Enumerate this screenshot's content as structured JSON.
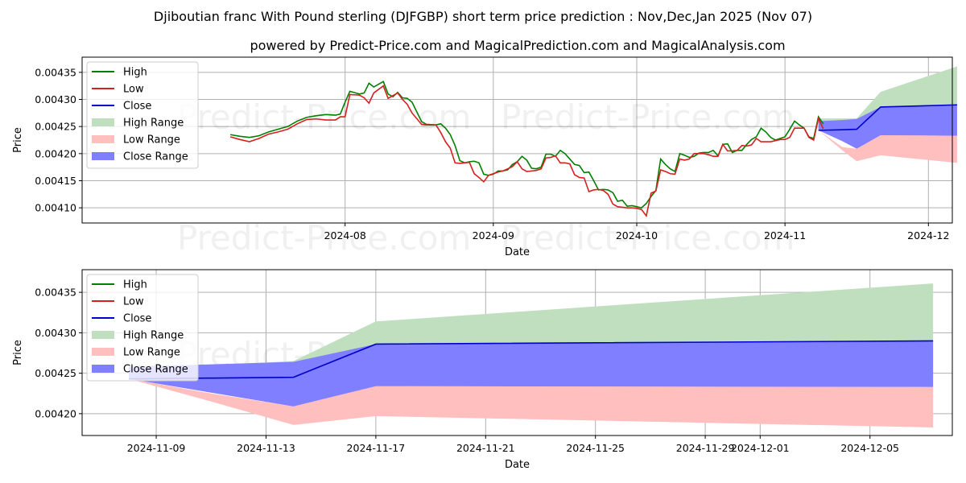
{
  "title": "Djiboutian franc With Pound sterling (DJFGBP) short term price prediction : Nov,Dec,Jan 2025 (Nov 07)",
  "subtitle": "powered by Predict-Price.com and MagicalPrediction.com and MagicalAnalysis.com",
  "watermark": "Predict-Price.com",
  "colors": {
    "high": "#008000",
    "low": "#d62020",
    "close": "#0000cc",
    "high_range": "#bfdfbf",
    "low_range": "#ffbfbf",
    "close_range": "#7f7fff"
  },
  "legend": [
    "High",
    "Low",
    "Close",
    "High Range",
    "Low Range",
    "Close Range"
  ],
  "chart_data": [
    {
      "type": "line",
      "xlabel": "Date",
      "ylabel": "Price",
      "xlim_days": [
        -24,
        158
      ],
      "ylim": [
        0.004072,
        0.004378
      ],
      "x_ticks": [
        {
          "label": "2024-08",
          "day": 31
        },
        {
          "label": "2024-09",
          "day": 62
        },
        {
          "label": "2024-10",
          "day": 92
        },
        {
          "label": "2024-11",
          "day": 123
        },
        {
          "label": "2024-12",
          "day": 153
        }
      ],
      "y_ticks": [
        {
          "label": "0.00410",
          "value": 0.0041
        },
        {
          "label": "0.00415",
          "value": 0.00415
        },
        {
          "label": "0.00420",
          "value": 0.0042
        },
        {
          "label": "0.00425",
          "value": 0.00425
        },
        {
          "label": "0.00430",
          "value": 0.0043
        },
        {
          "label": "0.00435",
          "value": 0.00435
        }
      ],
      "day_zero": "2024-07-01",
      "history": {
        "high": [
          [
            7,
            0.004235
          ],
          [
            9,
            0.004232
          ],
          [
            11,
            0.00423
          ],
          [
            13,
            0.004233
          ],
          [
            15,
            0.00424
          ],
          [
            17,
            0.004245
          ],
          [
            19,
            0.00425
          ],
          [
            21,
            0.00426
          ],
          [
            23,
            0.004267
          ],
          [
            25,
            0.00427
          ],
          [
            27,
            0.004272
          ],
          [
            29,
            0.004271
          ],
          [
            30,
            0.004273
          ],
          [
            31,
            0.004295
          ],
          [
            32,
            0.004315
          ],
          [
            34,
            0.00431
          ],
          [
            35,
            0.004312
          ],
          [
            36,
            0.00433
          ],
          [
            37,
            0.004323
          ],
          [
            39,
            0.004333
          ],
          [
            40,
            0.00431
          ],
          [
            41,
            0.004305
          ],
          [
            42,
            0.004313
          ],
          [
            43,
            0.004303
          ],
          [
            44,
            0.004302
          ],
          [
            45,
            0.004295
          ],
          [
            47,
            0.004259
          ],
          [
            48,
            0.004254
          ],
          [
            50,
            0.004253
          ],
          [
            51,
            0.004255
          ],
          [
            52,
            0.004247
          ],
          [
            53,
            0.004235
          ],
          [
            54,
            0.004215
          ],
          [
            55,
            0.004187
          ],
          [
            56,
            0.004183
          ],
          [
            57,
            0.004185
          ],
          [
            58,
            0.004186
          ],
          [
            59,
            0.004183
          ],
          [
            60,
            0.004162
          ],
          [
            61,
            0.00416
          ],
          [
            62,
            0.004162
          ],
          [
            63,
            0.004168
          ],
          [
            64,
            0.004168
          ],
          [
            65,
            0.00417
          ],
          [
            66,
            0.00418
          ],
          [
            67,
            0.004185
          ],
          [
            68,
            0.004195
          ],
          [
            69,
            0.004188
          ],
          [
            70,
            0.004173
          ],
          [
            71,
            0.004172
          ],
          [
            72,
            0.004175
          ],
          [
            73,
            0.004199
          ],
          [
            74,
            0.004199
          ],
          [
            75,
            0.004195
          ],
          [
            76,
            0.004206
          ],
          [
            77,
            0.0042
          ],
          [
            78,
            0.00419
          ],
          [
            79,
            0.00418
          ],
          [
            80,
            0.004178
          ],
          [
            81,
            0.004165
          ],
          [
            82,
            0.004166
          ],
          [
            83,
            0.00415
          ],
          [
            84,
            0.004133
          ],
          [
            85,
            0.004134
          ],
          [
            86,
            0.004133
          ],
          [
            87,
            0.004128
          ],
          [
            88,
            0.004112
          ],
          [
            89,
            0.004114
          ],
          [
            90,
            0.004103
          ],
          [
            91,
            0.004104
          ],
          [
            92,
            0.004102
          ],
          [
            93,
            0.0041
          ],
          [
            94,
            0.004108
          ],
          [
            95,
            0.004121
          ],
          [
            96,
            0.004132
          ],
          [
            97,
            0.00419
          ],
          [
            98,
            0.00418
          ],
          [
            99,
            0.004172
          ],
          [
            100,
            0.004167
          ],
          [
            101,
            0.0042
          ],
          [
            102,
            0.004197
          ],
          [
            103,
            0.004193
          ],
          [
            104,
            0.004195
          ],
          [
            105,
            0.004201
          ],
          [
            106,
            0.004202
          ],
          [
            107,
            0.004202
          ],
          [
            108,
            0.004206
          ],
          [
            109,
            0.004196
          ],
          [
            110,
            0.004217
          ],
          [
            111,
            0.004218
          ],
          [
            112,
            0.004202
          ],
          [
            113,
            0.004206
          ],
          [
            114,
            0.004206
          ],
          [
            115,
            0.004217
          ],
          [
            116,
            0.004226
          ],
          [
            117,
            0.004231
          ],
          [
            118,
            0.004247
          ],
          [
            119,
            0.00424
          ],
          [
            120,
            0.00423
          ],
          [
            121,
            0.004225
          ],
          [
            122,
            0.004228
          ],
          [
            123,
            0.004231
          ],
          [
            124,
            0.004245
          ],
          [
            125,
            0.00426
          ],
          [
            126,
            0.004253
          ],
          [
            127,
            0.004247
          ],
          [
            128,
            0.004231
          ],
          [
            129,
            0.004228
          ],
          [
            130,
            0.004268
          ],
          [
            131,
            0.004255
          ]
        ],
        "low": [
          [
            7,
            0.004231
          ],
          [
            9,
            0.004226
          ],
          [
            11,
            0.004222
          ],
          [
            13,
            0.004228
          ],
          [
            15,
            0.004236
          ],
          [
            17,
            0.00424
          ],
          [
            19,
            0.004245
          ],
          [
            21,
            0.004255
          ],
          [
            23,
            0.004263
          ],
          [
            25,
            0.004264
          ],
          [
            27,
            0.004262
          ],
          [
            29,
            0.004262
          ],
          [
            30,
            0.004268
          ],
          [
            31,
            0.004268
          ],
          [
            32,
            0.004309
          ],
          [
            34,
            0.004308
          ],
          [
            35,
            0.004303
          ],
          [
            36,
            0.004293
          ],
          [
            37,
            0.004312
          ],
          [
            39,
            0.004325
          ],
          [
            40,
            0.004302
          ],
          [
            41,
            0.004307
          ],
          [
            42,
            0.004312
          ],
          [
            43,
            0.0043
          ],
          [
            44,
            0.004291
          ],
          [
            45,
            0.004275
          ],
          [
            47,
            0.004254
          ],
          [
            48,
            0.004253
          ],
          [
            50,
            0.004253
          ],
          [
            51,
            0.004239
          ],
          [
            52,
            0.004222
          ],
          [
            53,
            0.00421
          ],
          [
            54,
            0.004183
          ],
          [
            55,
            0.004182
          ],
          [
            56,
            0.004183
          ],
          [
            57,
            0.004184
          ],
          [
            58,
            0.004163
          ],
          [
            59,
            0.004156
          ],
          [
            60,
            0.004148
          ],
          [
            61,
            0.00416
          ],
          [
            62,
            0.004163
          ],
          [
            63,
            0.004166
          ],
          [
            64,
            0.004168
          ],
          [
            65,
            0.004172
          ],
          [
            66,
            0.004176
          ],
          [
            67,
            0.004185
          ],
          [
            68,
            0.004172
          ],
          [
            69,
            0.004167
          ],
          [
            70,
            0.004168
          ],
          [
            71,
            0.004169
          ],
          [
            72,
            0.004172
          ],
          [
            73,
            0.004192
          ],
          [
            74,
            0.004193
          ],
          [
            75,
            0.004196
          ],
          [
            76,
            0.004183
          ],
          [
            77,
            0.004183
          ],
          [
            78,
            0.004181
          ],
          [
            79,
            0.004161
          ],
          [
            80,
            0.004156
          ],
          [
            81,
            0.004155
          ],
          [
            82,
            0.00413
          ],
          [
            83,
            0.004133
          ],
          [
            84,
            0.004134
          ],
          [
            85,
            0.004132
          ],
          [
            86,
            0.004125
          ],
          [
            87,
            0.004107
          ],
          [
            88,
            0.004102
          ],
          [
            89,
            0.004101
          ],
          [
            90,
            0.0041
          ],
          [
            91,
            0.0041
          ],
          [
            92,
            0.004099
          ],
          [
            93,
            0.004097
          ],
          [
            94,
            0.004085
          ],
          [
            95,
            0.004127
          ],
          [
            96,
            0.004131
          ],
          [
            97,
            0.00417
          ],
          [
            98,
            0.004167
          ],
          [
            99,
            0.004163
          ],
          [
            100,
            0.004162
          ],
          [
            101,
            0.00419
          ],
          [
            102,
            0.004188
          ],
          [
            103,
            0.00419
          ],
          [
            104,
            0.0042
          ],
          [
            105,
            0.0042
          ],
          [
            106,
            0.0042
          ],
          [
            107,
            0.004198
          ],
          [
            108,
            0.004195
          ],
          [
            109,
            0.004195
          ],
          [
            110,
            0.004217
          ],
          [
            111,
            0.004205
          ],
          [
            112,
            0.004205
          ],
          [
            113,
            0.004206
          ],
          [
            114,
            0.004215
          ],
          [
            115,
            0.004214
          ],
          [
            116,
            0.004216
          ],
          [
            117,
            0.004228
          ],
          [
            118,
            0.004222
          ],
          [
            119,
            0.004222
          ],
          [
            120,
            0.004222
          ],
          [
            121,
            0.004224
          ],
          [
            122,
            0.004226
          ],
          [
            123,
            0.004226
          ],
          [
            124,
            0.00423
          ],
          [
            125,
            0.004247
          ],
          [
            126,
            0.004247
          ],
          [
            127,
            0.004247
          ],
          [
            128,
            0.00423
          ],
          [
            129,
            0.004225
          ],
          [
            130,
            0.004265
          ],
          [
            131,
            0.004246
          ]
        ]
      },
      "forecast": {
        "days": [
          130,
          135,
          138,
          143,
          159
        ],
        "close": [
          0.004243,
          0.004244,
          0.004245,
          0.004286,
          0.00429
        ],
        "high_range_upper": [
          0.004265,
          0.004265,
          0.004265,
          0.004314,
          0.004361
        ],
        "high_range_lower": [
          0.004243,
          0.004244,
          0.004245,
          0.004286,
          0.00429
        ],
        "low_range_upper": [
          0.004243,
          0.004212,
          0.004209,
          0.004234,
          0.004233
        ],
        "low_range_lower": [
          0.004243,
          0.004206,
          0.004186,
          0.004197,
          0.004183
        ],
        "close_range_upper": [
          0.00426,
          0.004262,
          0.004264,
          0.004286,
          0.00429
        ],
        "close_range_lower": [
          0.004243,
          0.004223,
          0.004209,
          0.004234,
          0.004233
        ]
      }
    },
    {
      "type": "line",
      "xlabel": "Date",
      "ylabel": "Price",
      "xlim_days": [
        128.3,
        160.0
      ],
      "ylim": [
        0.004173,
        0.004378
      ],
      "x_ticks": [
        {
          "label": "2024-11-09",
          "day": 131
        },
        {
          "label": "2024-11-13",
          "day": 135
        },
        {
          "label": "2024-11-17",
          "day": 139
        },
        {
          "label": "2024-11-21",
          "day": 143
        },
        {
          "label": "2024-11-25",
          "day": 147
        },
        {
          "label": "2024-11-29",
          "day": 151
        },
        {
          "label": "2024-12-01",
          "day": 153
        },
        {
          "label": "2024-12-05",
          "day": 157
        }
      ],
      "y_ticks": [
        {
          "label": "0.00420",
          "value": 0.0042
        },
        {
          "label": "0.00425",
          "value": 0.00425
        },
        {
          "label": "0.00430",
          "value": 0.0043
        },
        {
          "label": "0.00435",
          "value": 0.00435
        }
      ],
      "forecast": {
        "days": [
          130,
          133,
          136,
          139,
          159.3
        ],
        "close": [
          0.004243,
          0.004244,
          0.004245,
          0.004286,
          0.00429
        ],
        "high_range_upper": [
          0.00426,
          0.00426,
          0.004265,
          0.004314,
          0.004361
        ],
        "high_range_lower": [
          0.004243,
          0.004244,
          0.004245,
          0.004286,
          0.00429
        ],
        "low_range_upper": [
          0.004243,
          0.004225,
          0.004209,
          0.004234,
          0.004233
        ],
        "low_range_lower": [
          0.004243,
          0.004215,
          0.004186,
          0.004197,
          0.004183
        ],
        "close_range_upper": [
          0.004258,
          0.004261,
          0.004264,
          0.004286,
          0.00429
        ],
        "close_range_lower": [
          0.004243,
          0.004226,
          0.004209,
          0.004234,
          0.004233
        ]
      }
    }
  ]
}
